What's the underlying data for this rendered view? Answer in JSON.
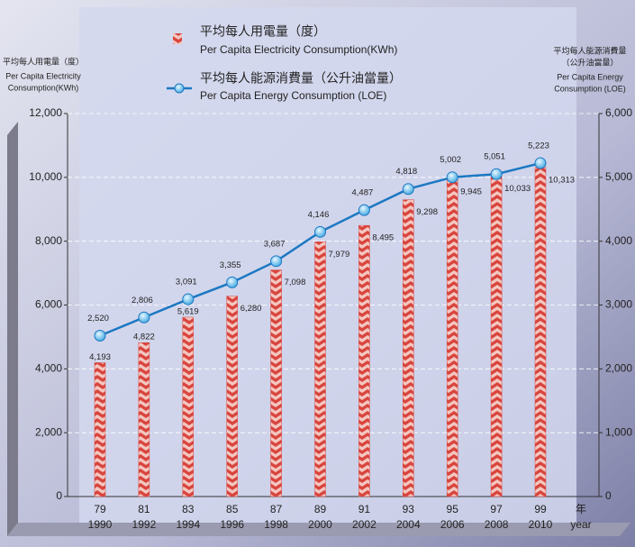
{
  "chart_data": {
    "type": "bar_line",
    "categories": [
      "79",
      "81",
      "83",
      "85",
      "87",
      "89",
      "91",
      "93",
      "95",
      "97",
      "99"
    ],
    "category_years": [
      "1990",
      "1992",
      "1994",
      "1996",
      "1998",
      "2000",
      "2002",
      "2004",
      "2006",
      "2008",
      "2010"
    ],
    "x_label": "年",
    "x_label_en": "year",
    "y_label": [
      "平均每人用電量（度）",
      "Per Capita Electricity",
      "Consumption(KWh)"
    ],
    "y2_label": [
      "平均每人能源消費量",
      "（公升油當量）",
      "Per Capita Energy",
      "Consumption (LOE)"
    ],
    "ylim": [
      0,
      12000
    ],
    "yticks": [
      0,
      {
        "value": 2000,
        "label": "2,000"
      },
      {
        "value": 4000,
        "label": "4,000"
      },
      {
        "value": 6000,
        "label": "6,000"
      },
      {
        "value": 8000,
        "label": "8,000"
      },
      {
        "value": 10000,
        "label": "10,000"
      },
      {
        "value": 12000,
        "label": "12,000"
      }
    ],
    "y2lim": [
      0,
      6000
    ],
    "y2ticks": [
      0,
      {
        "value": 1000,
        "label": "1,000"
      },
      {
        "value": 2000,
        "label": "2,000"
      },
      {
        "value": 3000,
        "label": "3,000"
      },
      {
        "value": 4000,
        "label": "4,000"
      },
      {
        "value": 5000,
        "label": "5,000"
      },
      {
        "value": 6000,
        "label": "6,000"
      }
    ],
    "grid": true,
    "series": [
      {
        "name": "平均每人用電量（度）",
        "name_en": "Per Capita Electricity  Consumption(KWh)",
        "type": "bar",
        "color": "#d8453e",
        "values": [
          4193,
          4822,
          5619,
          6280,
          7098,
          7979,
          8495,
          9298,
          9945,
          10033,
          10313
        ],
        "value_labels": [
          "4,193",
          "4,822",
          "5,619",
          "6,280",
          "7,098",
          "7,979",
          "8,495",
          "9,298",
          "9,945",
          "10,033",
          "10,313"
        ]
      },
      {
        "name": "平均每人能源消費量（公升油當量）",
        "name_en": "Per Capita Energy Consumption (LOE)",
        "type": "line",
        "color": "#1c78c2",
        "axis": "y2",
        "values": [
          2520,
          2806,
          3091,
          3355,
          3687,
          4146,
          4487,
          4818,
          5002,
          5051,
          5223
        ],
        "value_labels": [
          "2,520",
          "2,806",
          "3,091",
          "3,355",
          "3,687",
          "4,146",
          "4,487",
          "4,818",
          "5,002",
          "5,051",
          "5,223"
        ]
      }
    ]
  }
}
